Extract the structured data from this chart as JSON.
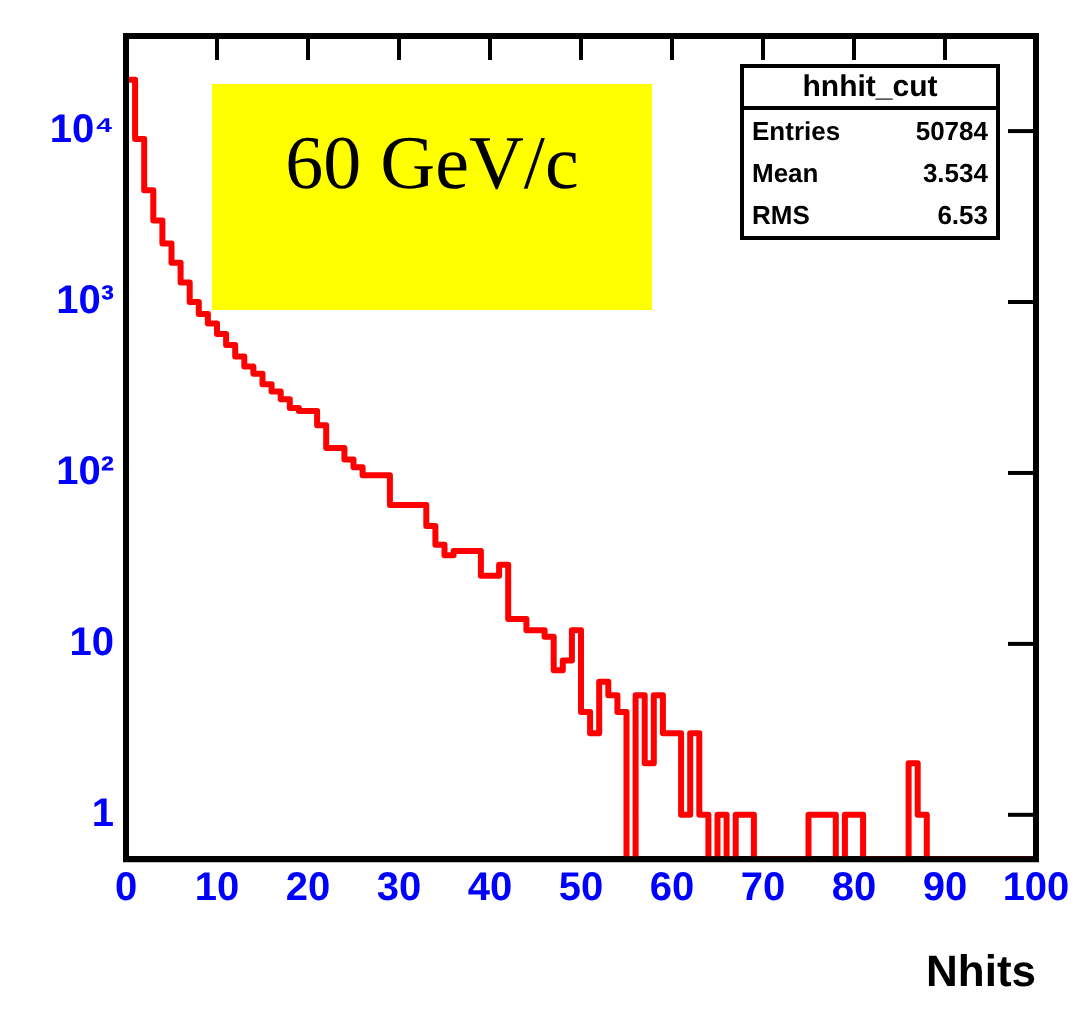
{
  "chart_data": {
    "type": "histogram",
    "xlabel": "Nhits",
    "bins": [
      0,
      1,
      2,
      3,
      4,
      5,
      6,
      7,
      8,
      9,
      10,
      11,
      12,
      13,
      14,
      15,
      16,
      17,
      18,
      19,
      20,
      21,
      22,
      23,
      24,
      25,
      26,
      27,
      28,
      29,
      30,
      31,
      32,
      33,
      34,
      35,
      36,
      37,
      38,
      39,
      40,
      41,
      42,
      43,
      44,
      45,
      46,
      47,
      48,
      49,
      50,
      51,
      52,
      53,
      54,
      55,
      56,
      57,
      58,
      59,
      60,
      61,
      62,
      63,
      64,
      65,
      66,
      67,
      68,
      69,
      70,
      71,
      72,
      73,
      74,
      75,
      76,
      77,
      78,
      79,
      80,
      81,
      82,
      83,
      84,
      85,
      86,
      87,
      88,
      89,
      90,
      91,
      92,
      93,
      94,
      95,
      96,
      97,
      98,
      99,
      100
    ],
    "values": [
      20000,
      9000,
      4500,
      3000,
      2200,
      1700,
      1300,
      1000,
      850,
      750,
      650,
      560,
      480,
      420,
      380,
      330,
      300,
      270,
      240,
      230,
      230,
      190,
      140,
      140,
      120,
      108,
      97,
      97,
      97,
      65,
      65,
      65,
      65,
      49,
      38,
      33,
      35,
      35,
      35,
      25,
      25,
      29,
      14,
      14,
      12,
      12,
      11,
      7,
      8,
      12,
      4,
      3,
      6,
      5,
      4,
      null,
      5,
      2,
      5,
      3,
      3,
      1,
      3,
      1,
      null,
      1,
      null,
      1,
      1,
      null,
      null,
      null,
      null,
      null,
      null,
      1,
      1,
      1,
      null,
      1,
      1,
      null,
      null,
      null,
      null,
      null,
      2,
      1,
      null,
      null,
      null,
      null,
      null,
      null,
      null,
      null,
      null,
      null,
      null,
      null
    ],
    "color": "#ff0000",
    "log": true,
    "grid": false,
    "legend": false,
    "xlim": [
      0,
      100
    ],
    "xticks": [
      0,
      10,
      20,
      30,
      40,
      50,
      60,
      70,
      80,
      90,
      100
    ],
    "ylim": [
      0.55,
      36000
    ],
    "yticks": [
      1,
      10,
      {
        "value": 100,
        "label": "10²"
      },
      {
        "value": 1000,
        "label": "10³"
      },
      {
        "value": 10000,
        "label": "10⁴"
      }
    ],
    "annotations": [
      "60 GeV/c",
      "hnhit_cut",
      "Entries 50784",
      "Mean 3.534",
      "RMS 6.53"
    ]
  }
}
